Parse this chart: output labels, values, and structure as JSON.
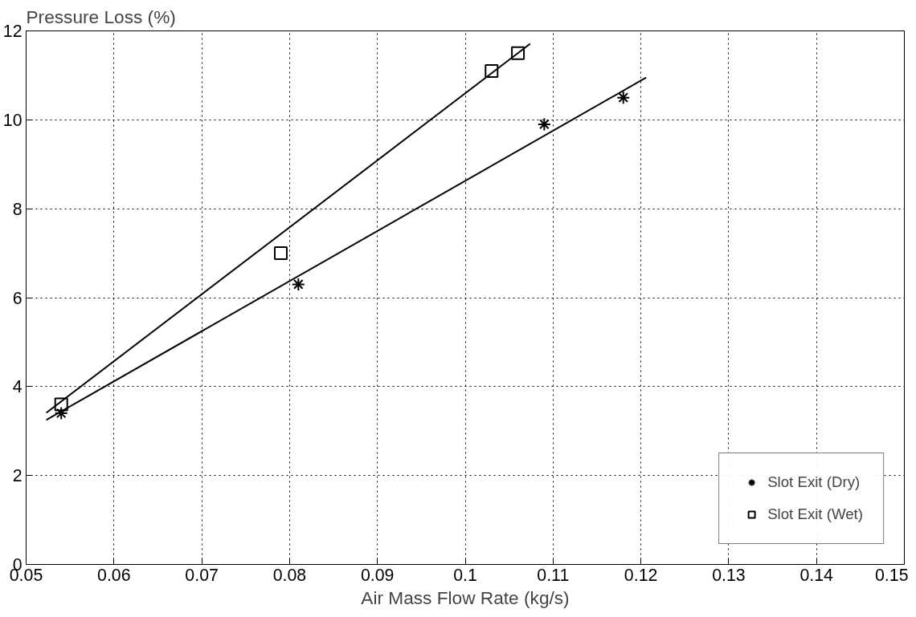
{
  "chart_data": {
    "type": "scatter",
    "ylabel": "Pressure Loss (%)",
    "xlabel": "Air Mass Flow Rate (kg/s)",
    "xlim": [
      0.05,
      0.15
    ],
    "xticks": [
      0.05,
      0.06,
      0.07,
      0.08,
      0.09,
      0.1,
      0.11,
      0.12,
      0.13,
      0.14,
      0.15
    ],
    "ylim": [
      0,
      12
    ],
    "yticks": [
      0,
      2,
      4,
      6,
      8,
      10,
      12
    ],
    "grid": true,
    "legend": "bottom right",
    "series": [
      {
        "name": "Slot Exit (Dry)",
        "color": "#000000",
        "marker": "cross",
        "x": [
          0.054,
          0.081,
          0.109,
          0.118
        ],
        "values": [
          3.4,
          6.3,
          9.9,
          10.5
        ]
      },
      {
        "name": "Slot Exit (Wet)",
        "color": "#000000",
        "marker": "square",
        "x": [
          0.054,
          0.079,
          0.103,
          0.106
        ],
        "values": [
          3.6,
          7.0,
          11.1,
          11.5
        ]
      },
      {
        "type": "line",
        "color": "#000000",
        "x": [
          0.0523,
          0.1206
        ],
        "values": [
          3.25,
          10.95
        ]
      },
      {
        "type": "line",
        "color": "#000000",
        "x": [
          0.0523,
          0.1074
        ],
        "values": [
          3.41,
          11.71
        ]
      }
    ]
  }
}
